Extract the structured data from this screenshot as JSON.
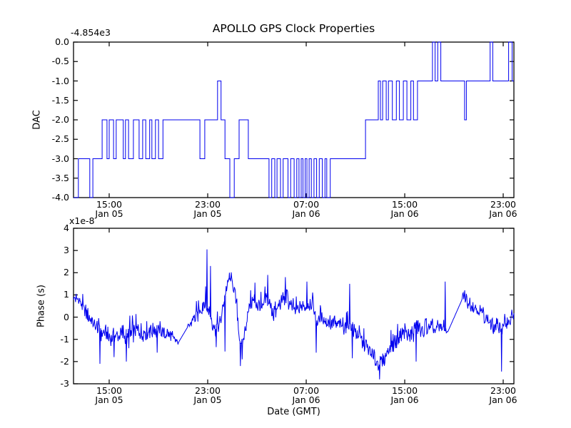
{
  "figure": {
    "title": "APOLLO GPS Clock Properties",
    "background_color": "#ffffff",
    "line_color": "#0000ee",
    "frame_color": "#000000"
  },
  "chart_data": [
    {
      "type": "line",
      "subplot": "top",
      "style": "step",
      "title": "APOLLO GPS Clock Properties",
      "ylabel": "DAC",
      "y_offset_label": "-4.854e3",
      "ylim": [
        -4.0,
        0.0
      ],
      "ytick_labels": [
        "0.0",
        "-0.5",
        "-1.0",
        "-1.5",
        "-2.0",
        "-2.5",
        "-3.0",
        "-3.5",
        "-4.0"
      ],
      "ytick_values": [
        0.0,
        -0.5,
        -1.0,
        -1.5,
        -2.0,
        -2.5,
        -3.0,
        -3.5,
        -4.0
      ],
      "xticks": [
        {
          "frac": 0.081,
          "time": "15:00",
          "date": "Jan 05"
        },
        {
          "frac": 0.3047,
          "time": "23:00",
          "date": "Jan 05"
        },
        {
          "frac": 0.5284,
          "time": "07:00",
          "date": "Jan 06"
        },
        {
          "frac": 0.7521,
          "time": "15:00",
          "date": "Jan 06"
        },
        {
          "frac": 0.9757,
          "time": "23:00",
          "date": "Jan 06"
        }
      ],
      "steps": [
        [
          0.0,
          -4
        ],
        [
          0.011,
          -3
        ],
        [
          0.037,
          -4
        ],
        [
          0.044,
          -3
        ],
        [
          0.065,
          -2
        ],
        [
          0.076,
          -3
        ],
        [
          0.081,
          -2
        ],
        [
          0.091,
          -3
        ],
        [
          0.097,
          -2
        ],
        [
          0.113,
          -3
        ],
        [
          0.118,
          -2
        ],
        [
          0.125,
          -3
        ],
        [
          0.136,
          -2
        ],
        [
          0.149,
          -3
        ],
        [
          0.157,
          -2
        ],
        [
          0.164,
          -3
        ],
        [
          0.173,
          -2
        ],
        [
          0.178,
          -3
        ],
        [
          0.186,
          -2
        ],
        [
          0.193,
          -3
        ],
        [
          0.203,
          -2
        ],
        [
          0.287,
          -3
        ],
        [
          0.298,
          -2
        ],
        [
          0.327,
          -1
        ],
        [
          0.335,
          -2
        ],
        [
          0.344,
          -3
        ],
        [
          0.355,
          -4
        ],
        [
          0.365,
          -3
        ],
        [
          0.376,
          -2
        ],
        [
          0.397,
          -3
        ],
        [
          0.444,
          -4
        ],
        [
          0.45,
          -3
        ],
        [
          0.457,
          -4
        ],
        [
          0.462,
          -3
        ],
        [
          0.47,
          -4
        ],
        [
          0.476,
          -3
        ],
        [
          0.487,
          -4
        ],
        [
          0.493,
          -3
        ],
        [
          0.501,
          -4
        ],
        [
          0.507,
          -3
        ],
        [
          0.512,
          -4
        ],
        [
          0.517,
          -3
        ],
        [
          0.521,
          -4
        ],
        [
          0.526,
          -3
        ],
        [
          0.53,
          -4
        ],
        [
          0.535,
          -3
        ],
        [
          0.54,
          -4
        ],
        [
          0.546,
          -3
        ],
        [
          0.552,
          -4
        ],
        [
          0.558,
          -3
        ],
        [
          0.565,
          -4
        ],
        [
          0.571,
          -3
        ],
        [
          0.575,
          -4
        ],
        [
          0.583,
          -3
        ],
        [
          0.663,
          -2
        ],
        [
          0.692,
          -1
        ],
        [
          0.697,
          -2
        ],
        [
          0.702,
          -1
        ],
        [
          0.71,
          -2
        ],
        [
          0.715,
          -1
        ],
        [
          0.724,
          -2
        ],
        [
          0.733,
          -1
        ],
        [
          0.74,
          -2
        ],
        [
          0.749,
          -1
        ],
        [
          0.757,
          -2
        ],
        [
          0.766,
          -1
        ],
        [
          0.772,
          -2
        ],
        [
          0.781,
          -1
        ],
        [
          0.815,
          0
        ],
        [
          0.821,
          -1
        ],
        [
          0.827,
          0
        ],
        [
          0.834,
          -1
        ],
        [
          0.888,
          -2
        ],
        [
          0.892,
          -1
        ],
        [
          0.946,
          0
        ],
        [
          0.952,
          -1
        ],
        [
          0.988,
          0
        ],
        [
          0.996,
          -1
        ]
      ]
    },
    {
      "type": "line",
      "subplot": "bottom",
      "style": "noisy",
      "ylabel": "Phase (s)",
      "xlabel": "Date (GMT)",
      "y_offset_label": "x1e-8",
      "ylim_1e8": [
        -3,
        4
      ],
      "ytick_labels": [
        "4",
        "3",
        "2",
        "1",
        "0",
        "-1",
        "-2",
        "-3"
      ],
      "ytick_values": [
        4,
        3,
        2,
        1,
        0,
        -1,
        -2,
        -3
      ],
      "xticks": [
        {
          "frac": 0.081,
          "time": "15:00",
          "date": "Jan 05"
        },
        {
          "frac": 0.3047,
          "time": "23:00",
          "date": "Jan 05"
        },
        {
          "frac": 0.5284,
          "time": "07:00",
          "date": "Jan 06"
        },
        {
          "frac": 0.7521,
          "time": "15:00",
          "date": "Jan 06"
        },
        {
          "frac": 0.9757,
          "time": "23:00",
          "date": "Jan 06"
        }
      ],
      "keyframes": [
        [
          0.0,
          0.9,
          0.35
        ],
        [
          0.011,
          0.85,
          0.3
        ],
        [
          0.024,
          0.3,
          0.4
        ],
        [
          0.041,
          -0.2,
          0.45
        ],
        [
          0.06,
          -0.6,
          0.55
        ],
        [
          0.076,
          -0.9,
          0.4
        ],
        [
          0.092,
          -0.85,
          0.5
        ],
        [
          0.112,
          -0.75,
          0.55
        ],
        [
          0.125,
          -0.9,
          0.65
        ],
        [
          0.141,
          -0.6,
          0.5
        ],
        [
          0.157,
          -0.7,
          0.55
        ],
        [
          0.173,
          -0.5,
          0.5
        ],
        [
          0.19,
          -0.6,
          0.5
        ],
        [
          0.206,
          -0.75,
          0.45
        ],
        [
          0.222,
          -0.9,
          0.4
        ],
        [
          0.238,
          -1.15,
          0.1
        ],
        [
          0.259,
          -0.45,
          0.1
        ],
        [
          0.271,
          -0.1,
          0.4
        ],
        [
          0.287,
          0.3,
          0.45
        ],
        [
          0.297,
          0.65,
          0.55
        ],
        [
          0.308,
          0.3,
          0.55
        ],
        [
          0.316,
          -0.3,
          0.5
        ],
        [
          0.324,
          -0.55,
          0.5
        ],
        [
          0.332,
          -0.3,
          0.45
        ],
        [
          0.34,
          0.5,
          0.4
        ],
        [
          0.348,
          1.4,
          0.35
        ],
        [
          0.356,
          1.75,
          0.3
        ],
        [
          0.363,
          1.4,
          0.35
        ],
        [
          0.37,
          0.6,
          0.4
        ],
        [
          0.376,
          -0.8,
          0.4
        ],
        [
          0.381,
          -1.4,
          0.3
        ],
        [
          0.386,
          -1.0,
          0.35
        ],
        [
          0.393,
          -0.2,
          0.4
        ],
        [
          0.4,
          0.55,
          0.4
        ],
        [
          0.41,
          0.7,
          0.5
        ],
        [
          0.42,
          0.5,
          0.45
        ],
        [
          0.429,
          0.4,
          0.45
        ],
        [
          0.441,
          0.9,
          0.55
        ],
        [
          0.454,
          0.2,
          0.5
        ],
        [
          0.468,
          0.55,
          0.45
        ],
        [
          0.481,
          1.0,
          0.5
        ],
        [
          0.494,
          0.55,
          0.45
        ],
        [
          0.506,
          0.2,
          0.45
        ],
        [
          0.517,
          0.45,
          0.45
        ],
        [
          0.53,
          0.55,
          0.5
        ],
        [
          0.543,
          0.7,
          0.45
        ],
        [
          0.551,
          -0.3,
          0.55
        ],
        [
          0.562,
          0.05,
          0.45
        ],
        [
          0.579,
          -0.2,
          0.45
        ],
        [
          0.595,
          -0.3,
          0.45
        ],
        [
          0.611,
          -0.4,
          0.5
        ],
        [
          0.627,
          -0.2,
          0.65
        ],
        [
          0.639,
          -0.55,
          0.55
        ],
        [
          0.651,
          -0.95,
          0.45
        ],
        [
          0.664,
          -1.25,
          0.45
        ],
        [
          0.676,
          -1.65,
          0.45
        ],
        [
          0.687,
          -1.95,
          0.45
        ],
        [
          0.695,
          -2.15,
          0.45
        ],
        [
          0.705,
          -1.85,
          0.45
        ],
        [
          0.716,
          -1.4,
          0.45
        ],
        [
          0.728,
          -1.1,
          0.5
        ],
        [
          0.741,
          -0.8,
          0.55
        ],
        [
          0.754,
          -0.6,
          0.55
        ],
        [
          0.765,
          -0.95,
          0.6
        ],
        [
          0.778,
          -0.35,
          0.6
        ],
        [
          0.789,
          -0.75,
          0.6
        ],
        [
          0.801,
          -0.4,
          0.5
        ],
        [
          0.814,
          -0.55,
          0.45
        ],
        [
          0.825,
          -0.5,
          0.45
        ],
        [
          0.835,
          -0.45,
          0.35
        ],
        [
          0.846,
          -0.6,
          0.15
        ],
        [
          0.849,
          -0.7,
          0.05
        ],
        [
          0.882,
          0.78,
          0.05
        ],
        [
          0.886,
          1.05,
          0.35
        ],
        [
          0.896,
          0.7,
          0.4
        ],
        [
          0.908,
          0.5,
          0.4
        ],
        [
          0.919,
          0.4,
          0.45
        ],
        [
          0.93,
          0.2,
          0.4
        ],
        [
          0.942,
          -0.15,
          0.4
        ],
        [
          0.951,
          -0.45,
          0.45
        ],
        [
          0.963,
          -0.4,
          0.45
        ],
        [
          0.972,
          -0.55,
          0.5
        ],
        [
          0.984,
          -0.2,
          0.45
        ],
        [
          0.992,
          -0.1,
          0.4
        ],
        [
          1.0,
          0.1,
          0.25
        ]
      ],
      "spikes": [
        [
          0.06,
          -2.1
        ],
        [
          0.092,
          -1.8
        ],
        [
          0.12,
          -2.0
        ],
        [
          0.19,
          -1.6
        ],
        [
          0.303,
          3.05
        ],
        [
          0.311,
          2.3
        ],
        [
          0.324,
          -1.35
        ],
        [
          0.344,
          -1.55
        ],
        [
          0.354,
          2.0
        ],
        [
          0.379,
          -2.2
        ],
        [
          0.383,
          -1.9
        ],
        [
          0.412,
          1.55
        ],
        [
          0.441,
          1.9
        ],
        [
          0.481,
          1.8
        ],
        [
          0.53,
          1.6
        ],
        [
          0.551,
          -1.6
        ],
        [
          0.627,
          1.5
        ],
        [
          0.633,
          -1.85
        ],
        [
          0.695,
          -2.8
        ],
        [
          0.778,
          -2.0
        ],
        [
          0.844,
          1.6
        ],
        [
          0.972,
          -2.45
        ]
      ],
      "gaps": [
        [
          0.238,
          0.259
        ],
        [
          0.849,
          0.882
        ]
      ]
    }
  ]
}
